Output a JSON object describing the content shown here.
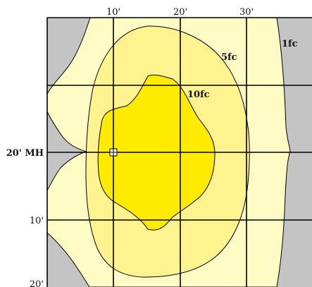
{
  "diagram": {
    "top_axis_labels": [
      "10'",
      "20'",
      "30'"
    ],
    "left_axis_labels": [
      "20' MH",
      "10'",
      "20'"
    ],
    "contour_labels": {
      "outer": "1fc",
      "middle": "5fc",
      "inner": "10fc"
    },
    "colors": {
      "background_gray": "#c4c4c4",
      "zone_1fc": "#fffbc4",
      "zone_5fc": "#fff390",
      "zone_10fc": "#ffeb00",
      "grid_line": "#000000",
      "contour_line": "#000000"
    },
    "fixture_marker": "square-crosshair"
  }
}
